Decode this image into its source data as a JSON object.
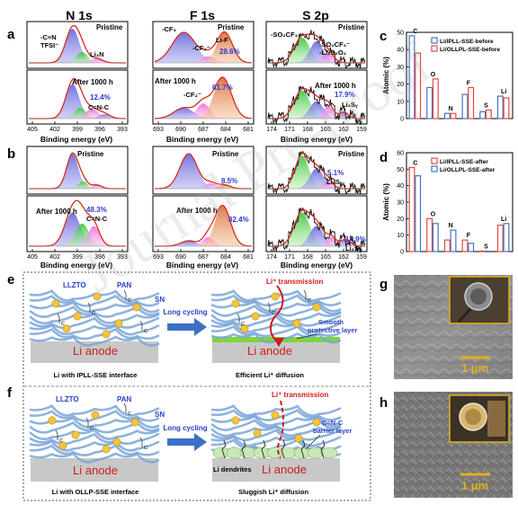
{
  "panel_a": {
    "letter": "a",
    "cols": [
      {
        "title": "N 1s",
        "top_label": "Pristine",
        "top_peaks": [
          "-C≡N",
          "TFSI⁻",
          "Li₃N"
        ],
        "bot_label": "After 1000 h",
        "bot_pct": "12.4%",
        "bot_peak": "C=N-C",
        "ticks": [
          "405",
          "402",
          "399",
          "396",
          "393"
        ],
        "xlabel": "Binding energy (eV)"
      },
      {
        "title": "F 1s",
        "top_label": "Pristine",
        "top_peaks": [
          "-CF₃",
          "-CF₂⁻",
          "Li-F"
        ],
        "top_pct": "28.6%",
        "bot_label": "After 1000 h",
        "bot_pct": "61.7%",
        "bot_peak": "-CF₂⁻",
        "ticks": [
          "693",
          "690",
          "687",
          "684",
          "681"
        ],
        "xlabel": "Binding energy (eV)"
      },
      {
        "title": "S 2p",
        "top_label": "Pristine",
        "top_peaks": [
          "-SO₂CF₃",
          "-SO₂CF₃⁻",
          "-Li₂S₂O₂"
        ],
        "bot_label": "After 1000 h",
        "bot_pct": "17.9%",
        "bot_peak": "Li₂Sᵧ",
        "ticks": [
          "174",
          "171",
          "168",
          "165",
          "162",
          "159"
        ],
        "xlabel": "Binding energy (eV)"
      }
    ]
  },
  "panel_b": {
    "letter": "b",
    "cols": [
      {
        "top_label": "Pristine",
        "bot_label": "After 1000 h",
        "bot_pct": "48.3%",
        "bot_peak": "C=N-C",
        "ticks": [
          "405",
          "402",
          "399",
          "396",
          "393"
        ],
        "xlabel": "Binding energy (eV)"
      },
      {
        "top_label": "Pristine",
        "top_pct": "8.5%",
        "bot_label": "After 1000 h",
        "bot_pct": "82.4%",
        "ticks": [
          "693",
          "690",
          "687",
          "684",
          "681"
        ],
        "xlabel": "Binding energy (eV)"
      },
      {
        "top_label": "Pristine",
        "top_pct": "5.1%",
        "top_peak": "Li₂Sᵧ",
        "bot_pct": "14.9%",
        "bot_peak": "Li₂Sᵧ",
        "ticks": [
          "174",
          "171",
          "168",
          "165",
          "162",
          "159"
        ],
        "xlabel": "Binding energy (eV)"
      }
    ]
  },
  "chart_data": [
    {
      "type": "bar",
      "panel": "c",
      "categories": [
        "C",
        "O",
        "N",
        "F",
        "S",
        "Li"
      ],
      "series": [
        {
          "name": "Li/IPLL-SSE-before",
          "color": "#4472c4",
          "values": [
            48,
            18,
            3,
            14,
            4,
            13
          ]
        },
        {
          "name": "Li/OLLPL-SSE-before",
          "color": "#e8473f",
          "values": [
            38,
            23,
            3,
            18,
            5,
            12
          ]
        }
      ],
      "ylabel": "Atomic (%)",
      "ylim": [
        0,
        50
      ],
      "yticks": [
        "0",
        "10",
        "20",
        "30",
        "40",
        "50"
      ],
      "legend": "top-right"
    },
    {
      "type": "bar",
      "panel": "d",
      "categories": [
        "C",
        "O",
        "N",
        "F",
        "S",
        "Li"
      ],
      "series": [
        {
          "name": "Li/IPLL-SSE-after",
          "color": "#e8473f",
          "values": [
            51,
            20,
            7,
            7,
            0.3,
            16
          ]
        },
        {
          "name": "Li/OLLPL-SSE-after",
          "color": "#4472c4",
          "values": [
            46,
            17,
            13,
            5,
            0.2,
            17
          ]
        }
      ],
      "ylabel": "Atomic (%)",
      "ylim": [
        0,
        60
      ],
      "yticks": [
        "0",
        "10",
        "20",
        "30",
        "40",
        "50",
        "60"
      ],
      "legend": "top-right"
    }
  ],
  "panel_e": {
    "letter": "e",
    "llzto": "LLZTO",
    "pan": "PAN",
    "sn": "SN",
    "li_anode": "Li anode",
    "arrow_label": "Long cycling",
    "transmission": "Li⁺ transmission",
    "layer_label": "Smooth protective layer",
    "caption_left": "Li with IPLL-SSE interface",
    "caption_right": "Efficient Li⁺ diffusion"
  },
  "panel_f": {
    "letter": "f",
    "llzto": "LLZTO",
    "pan": "PAN",
    "sn": "SN",
    "li_anode": "Li anode",
    "arrow_label": "Long cycling",
    "transmission": "Li⁺ transmission",
    "layer_label": "C=N-C barrier layer",
    "dendrites": "Li dendrites",
    "caption_left": "Li with OLLP-SSE interface",
    "caption_right": "Sluggish Li⁺ diffusion"
  },
  "panel_g": {
    "letter": "g",
    "scale": "1 μm"
  },
  "panel_h": {
    "letter": "h",
    "scale": "1 μm"
  },
  "colors": {
    "envelope": "#d62a1e",
    "raw": "#111111",
    "peak_blue": "#5b5bd6",
    "peak_green": "#3cc43c",
    "peak_pink": "#e060d0",
    "peak_purple": "#8a55c9",
    "peak_orange": "#e59a5c",
    "bar_blue": "#4472c4",
    "bar_red": "#e8473f",
    "anode": "#c8c8c8",
    "sem_frame": "#e0b020"
  }
}
